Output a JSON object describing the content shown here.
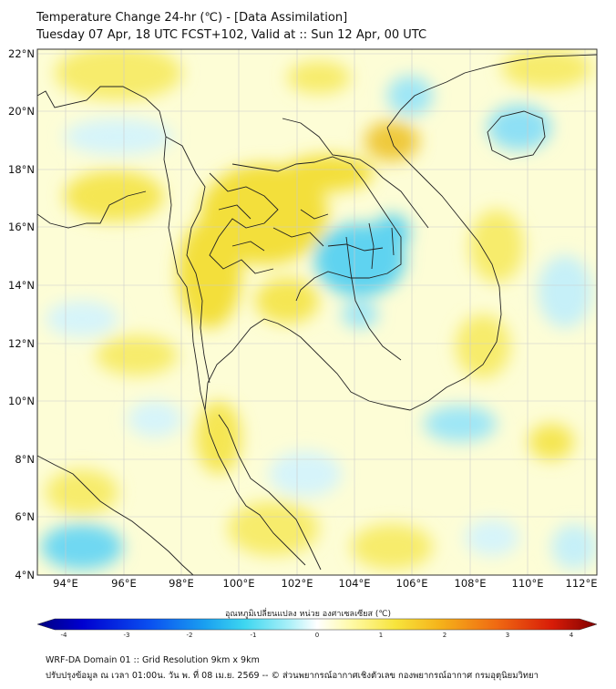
{
  "header": {
    "title_line1": "Temperature Change 24-hr (℃) - [Data Assimilation]",
    "title_line2": "Tuesday 07 Apr, 18 UTC FCST+102, Valid at :: Sun 12 Apr, 00 UTC"
  },
  "map": {
    "y_axis_labels": [
      "22°N",
      "20°N",
      "18°N",
      "16°N",
      "14°N",
      "12°N",
      "10°N",
      "8°N",
      "6°N",
      "4°N"
    ],
    "x_axis_labels": [
      "94°E",
      "96°E",
      "98°E",
      "100°E",
      "102°E",
      "104°E",
      "106°E",
      "108°E",
      "110°E",
      "112°E"
    ],
    "lat_range": [
      4,
      22
    ],
    "lon_range": [
      93,
      112.5
    ],
    "grid": true,
    "background_color": "#fdfdd6",
    "warm_color": "#f5e34a",
    "cool_color": "#5fd3f0"
  },
  "colorbar": {
    "title": "อุณหภูมิเปลี่ยนแปลง หน่วย องศาเซลเซียส (℃)",
    "ticks": [
      "-4",
      "-3",
      "-2",
      "-1",
      "0",
      "1",
      "2",
      "3",
      "4"
    ],
    "range": [
      -4,
      4
    ],
    "colors": [
      "#00007f",
      "#0000d0",
      "#0a4ff0",
      "#1aa0f0",
      "#3dd6f0",
      "#aaf0f8",
      "#ffffff",
      "#fffaa8",
      "#f7e43c",
      "#f5b21a",
      "#f06a12",
      "#d81c08",
      "#7f0000"
    ]
  },
  "footer": {
    "line1": "WRF-DA Domain 01 :: Grid Resolution 9km x 9km",
    "line2": "ปรับปรุงข้อมูล ณ เวลา 01:00น. วัน พ. ที่ 08 เม.ย. 2569 -- © ส่วนพยากรณ์อากาศเชิงตัวเลข กองพยากรณ์อากาศ กรมอุตุนิยมวิทยา"
  }
}
